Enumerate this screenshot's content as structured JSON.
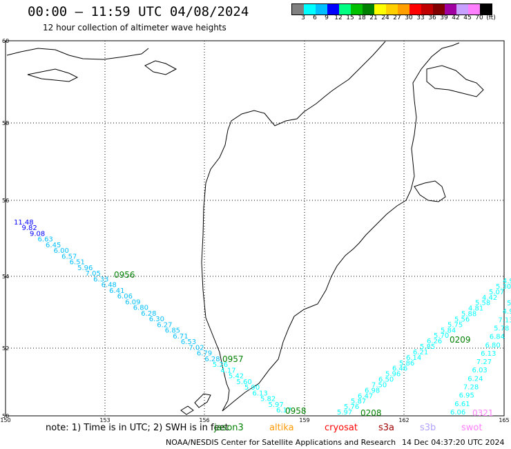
{
  "header": {
    "title": "00:00 – 11:59 UTC 04/08/2024",
    "subtitle": "12 hour collection of altimeter wave heights"
  },
  "legend": {
    "colors": [
      "#808080",
      "#00ffff",
      "#00bfff",
      "#0000ff",
      "#00ff80",
      "#00c000",
      "#008000",
      "#ffff00",
      "#ffd000",
      "#ffa000",
      "#ff0000",
      "#c00000",
      "#800000",
      "#a000a0",
      "#c8a0ff",
      "#ff80ff",
      "#000000"
    ],
    "ticks": [
      "3",
      "6",
      "9",
      "12",
      "15",
      "18",
      "21",
      "24",
      "27",
      "30",
      "33",
      "36",
      "39",
      "42",
      "45",
      "70",
      "(ft)"
    ]
  },
  "axes": {
    "lon_labels": [
      "150",
      "153",
      "156",
      "159",
      "162",
      "165"
    ],
    "lat_labels": [
      "60",
      "58",
      "56",
      "54",
      "52",
      "50"
    ]
  },
  "tracks": {
    "pass1": {
      "values": [
        "11.48",
        "9.82",
        "9.08",
        "6.63",
        "6.45",
        "6.00",
        "6.57",
        "6.51",
        "5.96",
        "7.05",
        "6.33",
        "6.48",
        "6.41",
        "6.06",
        "6.09",
        "6.80",
        "6.28",
        "6.30",
        "6.27",
        "6.85",
        "6.71",
        "6.53",
        "7.02",
        "6.79",
        "6.28",
        "5.26",
        "4.17",
        "5.42",
        "5.60",
        "5.90",
        "6.13",
        "5.82",
        "5.97",
        "6.17"
      ],
      "colors": [
        "#0000ff",
        "#0000ff",
        "#0000ff",
        "#00bfff",
        "#00bfff",
        "#00bfff",
        "#00bfff",
        "#00bfff",
        "#00bfff",
        "#00bfff",
        "#00bfff",
        "#00bfff",
        "#00bfff",
        "#00bfff",
        "#00bfff",
        "#00bfff",
        "#00bfff",
        "#00bfff",
        "#00bfff",
        "#00bfff",
        "#00bfff",
        "#00bfff",
        "#00bfff",
        "#00bfff",
        "#00bfff",
        "#00ffff",
        "#00ffff",
        "#00ffff",
        "#00ffff",
        "#00ffff",
        "#00ffff",
        "#00ffff",
        "#00ffff",
        "#00ffff"
      ],
      "times": [
        "0956",
        "0957",
        "0958"
      ]
    },
    "pass2": {
      "values": [
        "5.97",
        "5.76",
        "5.87",
        "6.47",
        "6.98",
        "7.50",
        "6.50",
        "5.96",
        "6.46",
        "5.86",
        "6.14",
        "6.21",
        "5.85",
        "6.26",
        "5.70",
        "5.84",
        "5.75",
        "5.56",
        "5.88",
        "4.81",
        "5.58",
        "4.42",
        "5.07",
        "5.30",
        "4.9"
      ],
      "time": "0208"
    },
    "pass3": {
      "values": [
        "6.06",
        "6.61",
        "6.95",
        "7.28",
        "6.24",
        "6.03",
        "7.27",
        "6.13",
        "6.80",
        "6.84",
        "5.78",
        "7.13",
        "4.93",
        "5."
      ],
      "times": [
        "0209",
        "0321"
      ]
    }
  },
  "footer": {
    "note": "note:  1) Time is in UTC;  2) SWH is in feet",
    "satellites": [
      {
        "label": "jason3",
        "color": "#008000"
      },
      {
        "label": "altika",
        "color": "#ff9900"
      },
      {
        "label": "cryosat",
        "color": "#ff0000"
      },
      {
        "label": "s3a",
        "color": "#a00000"
      },
      {
        "label": "s3b",
        "color": "#b0a0ff"
      },
      {
        "label": "swot",
        "color": "#ff80ff"
      }
    ],
    "credits": "NOAA/NESDIS Center for Satellite Applications and Research",
    "generated": "14 Dec 04:37:20 UTC 2024"
  }
}
